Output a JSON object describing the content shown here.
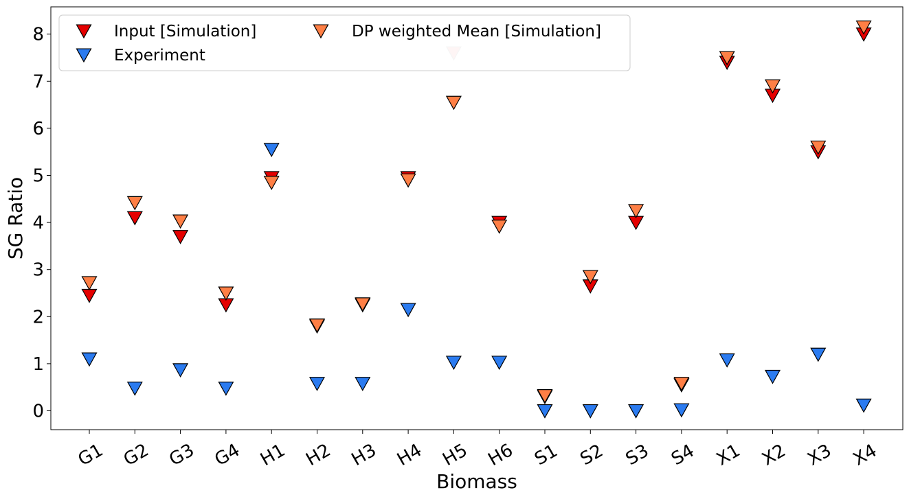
{
  "chart_data": {
    "type": "scatter",
    "xlabel": "Biomass",
    "ylabel": "SG Ratio",
    "ylim": [
      -0.4,
      8.6
    ],
    "yticks": [
      0,
      1,
      2,
      3,
      4,
      5,
      6,
      7,
      8
    ],
    "categories": [
      "G1",
      "G2",
      "G3",
      "G4",
      "H1",
      "H2",
      "H3",
      "H4",
      "H5",
      "H6",
      "S1",
      "S2",
      "S3",
      "S4",
      "X1",
      "X2",
      "X3",
      "X4"
    ],
    "grid": false,
    "legend_position": "top-left",
    "marker": "triangle-down",
    "series": [
      {
        "name": "Input [Simulation]",
        "color": "#e50000",
        "values": [
          2.45,
          4.1,
          3.7,
          2.25,
          4.95,
          1.8,
          2.25,
          4.95,
          7.6,
          4.0,
          0.3,
          2.65,
          4.0,
          0.55,
          7.4,
          6.7,
          5.5,
          8.0
        ]
      },
      {
        "name": "Experiment",
        "color": "#2b7bf0",
        "values": [
          1.1,
          0.48,
          0.87,
          0.48,
          5.55,
          0.58,
          0.58,
          2.15,
          1.03,
          1.03,
          0.0,
          0.0,
          0.0,
          0.02,
          1.08,
          0.73,
          1.2,
          0.12
        ]
      },
      {
        "name": "DP weighted Mean [Simulation]",
        "color": "#ff7f45",
        "values": [
          2.72,
          4.42,
          4.03,
          2.5,
          4.85,
          1.82,
          2.27,
          4.9,
          6.55,
          3.92,
          0.32,
          2.85,
          4.25,
          0.58,
          7.5,
          6.9,
          5.6,
          8.15
        ]
      }
    ]
  }
}
